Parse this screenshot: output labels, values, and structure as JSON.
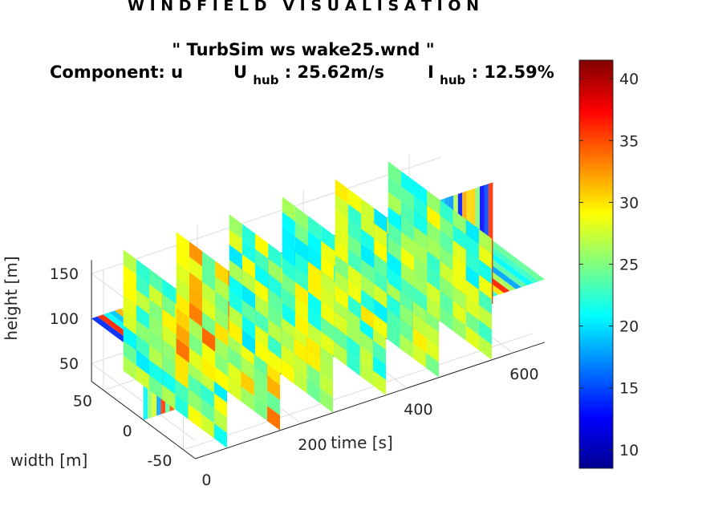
{
  "chart_data": {
    "type": "heatmap",
    "suptitle": "W I N D F I E L D   V I S U A L I S A T I O N",
    "title_line1": "\" TurbSim ws wake25.wnd \"",
    "title_line2": {
      "component_label": "Component: u",
      "uhub_symbol": "U",
      "uhub_sub": "hub",
      "uhub_value": ": 25.62m/s",
      "ihub_symbol": "I",
      "ihub_sub": "hub",
      "ihub_value": ": 12.59%"
    },
    "xlabel": "time [s]",
    "ylabel": "width [m]",
    "zlabel": "height [m]",
    "xlim": [
      0,
      660
    ],
    "ylim": [
      -65,
      65
    ],
    "zlim": [
      30,
      165
    ],
    "xticks": [
      0,
      200,
      400,
      600
    ],
    "yticks": [
      -50,
      0,
      50
    ],
    "zticks": [
      50,
      100,
      150
    ],
    "slices_time": [
      60,
      160,
      260,
      360,
      460,
      560
    ],
    "horizontal_slice_height": 100,
    "vertical_slice_width": 0,
    "colorbar": {
      "range": [
        8.5,
        41.5
      ],
      "ticks": [
        10,
        15,
        20,
        25,
        30,
        35,
        40
      ],
      "colormap": "jet"
    },
    "grid": true
  }
}
